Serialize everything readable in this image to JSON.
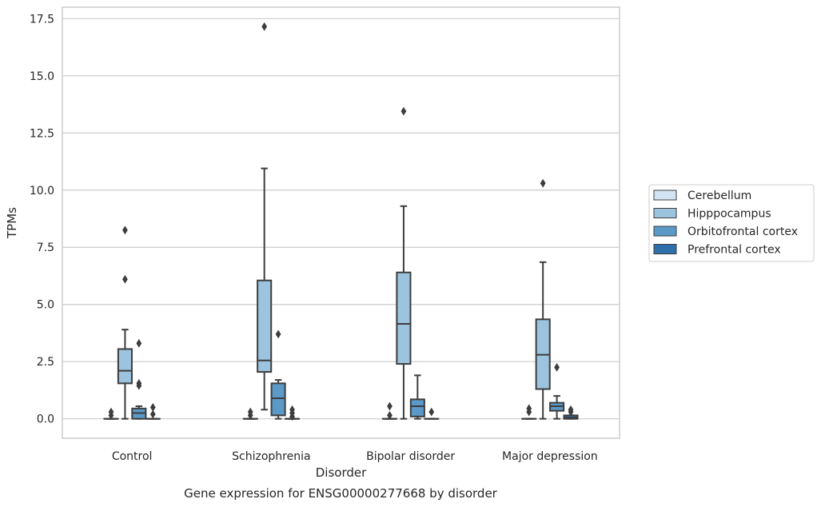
{
  "chart_data": {
    "type": "boxplot",
    "caption": "Gene expression for ENSG00000277668 by disorder",
    "xlabel": "Disorder",
    "ylabel": "TPMs",
    "ylim": [
      -0.85,
      18.0
    ],
    "yticks": [
      "0.0",
      "2.5",
      "5.0",
      "7.5",
      "10.0",
      "12.5",
      "15.0",
      "17.5"
    ],
    "ytick_values": [
      0,
      2.5,
      5,
      7.5,
      10,
      12.5,
      15,
      17.5
    ],
    "grid": "horizontal",
    "legend_placement": "right",
    "categories": [
      "Control",
      "Schizophrenia",
      "Bipolar disorder",
      "Major depression"
    ],
    "series": [
      {
        "name": "Cerebellum",
        "color": "#d4e3f2",
        "boxes": [
          {
            "q1": 0,
            "median": 0,
            "q3": 0,
            "whisker_low": 0,
            "whisker_high": 0,
            "outliers": [
              0.15,
              0.3
            ]
          },
          {
            "q1": 0,
            "median": 0,
            "q3": 0,
            "whisker_low": 0,
            "whisker_high": 0,
            "outliers": [
              0.15,
              0.3
            ]
          },
          {
            "q1": 0,
            "median": 0,
            "q3": 0,
            "whisker_low": 0,
            "whisker_high": 0,
            "outliers": [
              0.15,
              0.55
            ]
          },
          {
            "q1": 0,
            "median": 0,
            "q3": 0,
            "whisker_low": 0,
            "whisker_high": 0,
            "outliers": [
              0.3,
              0.45
            ]
          }
        ]
      },
      {
        "name": "Hipppocampus",
        "color": "#9cc4df",
        "boxes": [
          {
            "q1": 1.55,
            "median": 2.1,
            "q3": 3.05,
            "whisker_low": 0,
            "whisker_high": 3.9,
            "outliers": [
              6.1,
              8.25
            ]
          },
          {
            "q1": 2.05,
            "median": 2.55,
            "q3": 6.05,
            "whisker_low": 0.4,
            "whisker_high": 10.95,
            "outliers": [
              17.15
            ]
          },
          {
            "q1": 2.4,
            "median": 4.15,
            "q3": 6.4,
            "whisker_low": 0,
            "whisker_high": 9.3,
            "outliers": [
              13.45
            ]
          },
          {
            "q1": 1.3,
            "median": 2.8,
            "q3": 4.35,
            "whisker_low": 0,
            "whisker_high": 6.85,
            "outliers": [
              10.3
            ]
          }
        ]
      },
      {
        "name": "Orbitofrontal cortex",
        "color": "#5b9ac8",
        "boxes": [
          {
            "q1": 0,
            "median": 0.25,
            "q3": 0.45,
            "whisker_low": 0,
            "whisker_high": 0.55,
            "outliers": [
              1.45,
              1.55,
              3.3
            ]
          },
          {
            "q1": 0.15,
            "median": 0.9,
            "q3": 1.55,
            "whisker_low": 0,
            "whisker_high": 1.7,
            "outliers": [
              3.7
            ]
          },
          {
            "q1": 0.1,
            "median": 0.55,
            "q3": 0.85,
            "whisker_low": 0,
            "whisker_high": 1.9,
            "outliers": []
          },
          {
            "q1": 0.35,
            "median": 0.55,
            "q3": 0.7,
            "whisker_low": 0,
            "whisker_high": 1.0,
            "outliers": [
              2.25
            ]
          }
        ]
      },
      {
        "name": "Prefrontal cortex",
        "color": "#2e6eab",
        "boxes": [
          {
            "q1": 0,
            "median": 0,
            "q3": 0,
            "whisker_low": 0,
            "whisker_high": 0,
            "outliers": [
              0.2,
              0.5
            ]
          },
          {
            "q1": 0,
            "median": 0,
            "q3": 0,
            "whisker_low": 0,
            "whisker_high": 0,
            "outliers": [
              0.1,
              0.25,
              0.4
            ]
          },
          {
            "q1": 0,
            "median": 0,
            "q3": 0,
            "whisker_low": 0,
            "whisker_high": 0,
            "outliers": [
              0.3
            ]
          },
          {
            "q1": 0,
            "median": 0.05,
            "q3": 0.15,
            "whisker_low": 0,
            "whisker_high": 0.15,
            "outliers": [
              0.3,
              0.4
            ]
          }
        ]
      }
    ]
  }
}
